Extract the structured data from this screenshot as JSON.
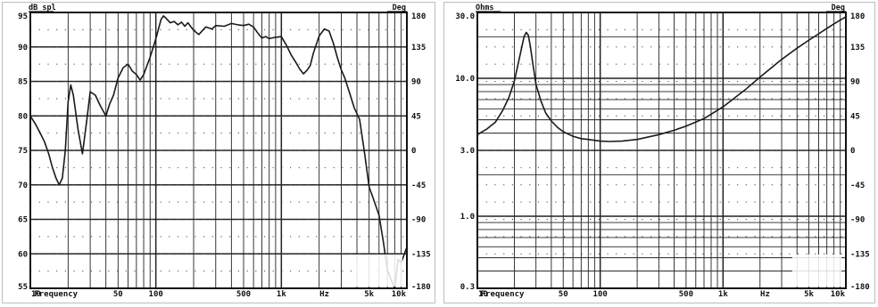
{
  "chart_data": [
    {
      "type": "line",
      "ylabel": "dB spl",
      "y2label": "Deg",
      "xlabel": "Frequency",
      "x_scale": "log",
      "xlim": [
        10,
        10000
      ],
      "ylim": [
        55,
        95
      ],
      "y2lim": [
        -180,
        180
      ],
      "grid": true,
      "y_ticks": [
        "95",
        "90",
        "85",
        "80",
        "75",
        "70",
        "65",
        "60",
        "55"
      ],
      "y2_ticks": [
        "180",
        "135",
        "90",
        "45",
        "0",
        "-45",
        "-90",
        "-135",
        "-180"
      ],
      "x_tick_labels": [
        {
          "f": 10,
          "label": "10"
        },
        {
          "f": 50,
          "label": "50"
        },
        {
          "f": 100,
          "label": "100"
        },
        {
          "f": 500,
          "label": "500"
        },
        {
          "f": 1000,
          "label": "1k"
        },
        {
          "f": 5000,
          "label": "5k"
        },
        {
          "f": 10000,
          "label": "10k"
        }
      ],
      "x_text_labels": [
        {
          "f": 16,
          "label": "Frequency"
        },
        {
          "f": 2200,
          "label": "Hz"
        }
      ],
      "series": [
        {
          "x": [
            10,
            11,
            12,
            13,
            14,
            15,
            16,
            17,
            18,
            19,
            20,
            21,
            22,
            24,
            26,
            28,
            30,
            33,
            36,
            40,
            43,
            46,
            50,
            55,
            60,
            65,
            70,
            75,
            80,
            90,
            100,
            110,
            115,
            120,
            130,
            140,
            150,
            160,
            170,
            180,
            200,
            220,
            250,
            280,
            300,
            350,
            400,
            450,
            500,
            550,
            600,
            650,
            700,
            750,
            800,
            900,
            1000,
            1100,
            1200,
            1300,
            1400,
            1500,
            1600,
            1700,
            1800,
            2000,
            2200,
            2400,
            2600,
            2800,
            3000,
            3200,
            3500,
            3800,
            4200,
            4600,
            5000,
            5500,
            6000,
            6500,
            7000,
            8000,
            8500,
            9000,
            10000
          ],
          "y": [
            80,
            78.8,
            77.5,
            76.2,
            74.5,
            72.5,
            71,
            70,
            71,
            75,
            82,
            84.5,
            83,
            78,
            74.5,
            79,
            83.5,
            83,
            81.5,
            80,
            81.8,
            83,
            85.5,
            87,
            87.5,
            86.5,
            86,
            85.2,
            86,
            88.5,
            91.2,
            94,
            94.5,
            94.2,
            93.5,
            93.7,
            93.2,
            93.6,
            93,
            93.5,
            92.4,
            91.8,
            92.9,
            92.6,
            93.1,
            93,
            93.4,
            93.2,
            93.1,
            93.3,
            92.9,
            92,
            91.3,
            91.5,
            91.2,
            91.4,
            91.5,
            90.2,
            88.8,
            87.8,
            86.8,
            86.1,
            86.6,
            87.3,
            89.1,
            91.6,
            92.6,
            92.3,
            90.5,
            88.4,
            86.7,
            85.5,
            83.3,
            81.2,
            79.5,
            74.6,
            69.7,
            67.6,
            65.6,
            61.7,
            57.6,
            55,
            59.2,
            58.7,
            61
          ]
        }
      ]
    },
    {
      "type": "line",
      "ylabel": "Ohms",
      "y2label": "Deg",
      "xlabel": "Frequency",
      "x_scale": "log",
      "y_scale": "log",
      "xlim": [
        10,
        10000
      ],
      "ylim": [
        0.3,
        30
      ],
      "y2lim": [
        -180,
        180
      ],
      "grid": true,
      "y_ticks": [
        {
          "v": 30,
          "label": "30.0"
        },
        {
          "v": 10,
          "label": "10.0"
        },
        {
          "v": 3,
          "label": "3.0"
        },
        {
          "v": 1,
          "label": "1.0"
        },
        {
          "v": 0.3,
          "label": "0.3"
        }
      ],
      "y2_ticks": [
        "180",
        "135",
        "90",
        "45",
        "0",
        "-45",
        "-90",
        "-135",
        "-180"
      ],
      "x_tick_labels": [
        {
          "f": 10,
          "label": "10"
        },
        {
          "f": 50,
          "label": "50"
        },
        {
          "f": 100,
          "label": "100"
        },
        {
          "f": 500,
          "label": "500"
        },
        {
          "f": 1000,
          "label": "1k"
        },
        {
          "f": 5000,
          "label": "5k"
        },
        {
          "f": 10000,
          "label": "10k"
        }
      ],
      "x_text_labels": [
        {
          "f": 16,
          "label": "Frequency"
        },
        {
          "f": 2200,
          "label": "Hz"
        }
      ],
      "series": [
        {
          "x": [
            10,
            12,
            14,
            16,
            18,
            20,
            22,
            24,
            25,
            26,
            27,
            28,
            30,
            33,
            36,
            40,
            45,
            50,
            60,
            70,
            80,
            90,
            100,
            120,
            150,
            200,
            300,
            400,
            500,
            700,
            1000,
            1500,
            2000,
            3000,
            4000,
            5000,
            6000,
            7000,
            8000,
            9000,
            10000
          ],
          "y": [
            3.9,
            4.3,
            4.8,
            5.8,
            7.2,
            9.5,
            14,
            20,
            21.5,
            20.5,
            17,
            13.5,
            9,
            6.8,
            5.6,
            4.9,
            4.4,
            4.1,
            3.8,
            3.65,
            3.6,
            3.55,
            3.5,
            3.48,
            3.5,
            3.6,
            3.9,
            4.2,
            4.5,
            5.1,
            6.2,
            8.2,
            10.2,
            13.7,
            16.5,
            18.9,
            21,
            23,
            24.8,
            26.4,
            27.9
          ]
        }
      ]
    }
  ]
}
